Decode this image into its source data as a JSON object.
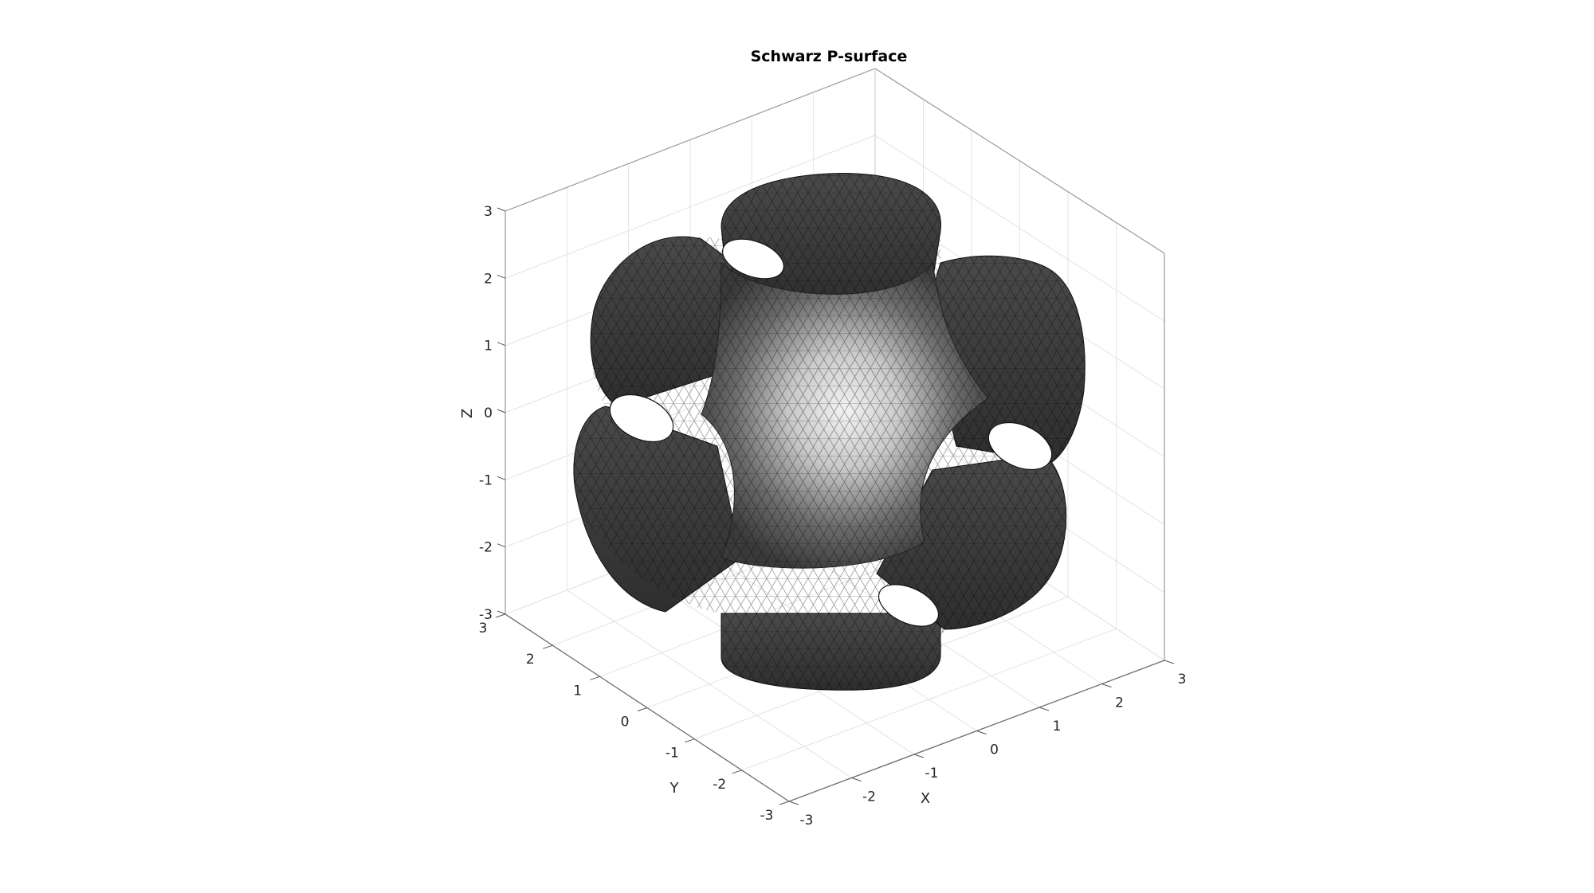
{
  "figure": {
    "title": "Schwarz P-surface",
    "xlabel": "X",
    "ylabel": "Y",
    "zlabel": "Z"
  },
  "chart_data": {
    "type": "surface",
    "title": "Schwarz P-surface",
    "xlabel": "X",
    "ylabel": "Y",
    "zlabel": "Z",
    "xlim": [
      -3,
      3
    ],
    "ylim": [
      -3,
      3
    ],
    "zlim": [
      -3,
      3
    ],
    "xticks": [
      "-3",
      "-2",
      "-1",
      "0",
      "1",
      "2",
      "3"
    ],
    "yticks": [
      "-3",
      "-2",
      "-1",
      "0",
      "1",
      "2",
      "3"
    ],
    "zticks": [
      "-3",
      "-2",
      "-1",
      "0",
      "1",
      "2",
      "3"
    ],
    "grid": true,
    "box": true,
    "surface_color": "#3a3a3a",
    "highlight_color": "#f0f0f0",
    "edge_color": "#000000"
  }
}
